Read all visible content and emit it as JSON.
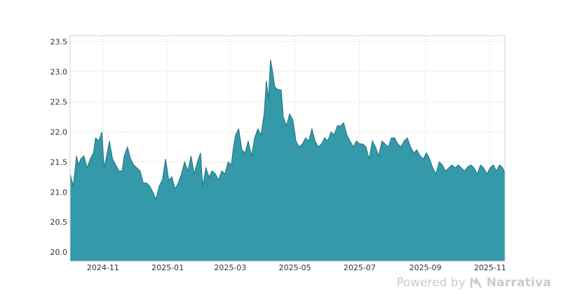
{
  "chart_data": {
    "type": "area",
    "title": "",
    "xlabel": "",
    "ylabel": "",
    "ylim": [
      19.85,
      23.6
    ],
    "xlim": [
      "2024-10-01",
      "2025-11-15"
    ],
    "y_ticks": [
      "20.0",
      "20.5",
      "21.0",
      "21.5",
      "22.0",
      "22.5",
      "23.0",
      "23.5"
    ],
    "x_ticks": [
      "2024-11",
      "2025-01",
      "2025-03",
      "2025-05",
      "2025-07",
      "2025-09",
      "2025-11"
    ],
    "grid": true,
    "colors": {
      "fill": "#3499a9",
      "line": "#1f7480",
      "grid": "#e3e3e3",
      "frame": "#cfcfcf"
    },
    "series": [
      {
        "points": [
          [
            "2024-10-01",
            21.3
          ],
          [
            "2024-10-04",
            21.1
          ],
          [
            "2024-10-07",
            21.6
          ],
          [
            "2024-10-09",
            21.45
          ],
          [
            "2024-10-11",
            21.55
          ],
          [
            "2024-10-14",
            21.6
          ],
          [
            "2024-10-17",
            21.4
          ],
          [
            "2024-10-20",
            21.55
          ],
          [
            "2024-10-23",
            21.65
          ],
          [
            "2024-10-25",
            21.9
          ],
          [
            "2024-10-28",
            21.85
          ],
          [
            "2024-10-31",
            22.0
          ],
          [
            "2024-11-02",
            21.4
          ],
          [
            "2024-11-05",
            21.65
          ],
          [
            "2024-11-07",
            21.85
          ],
          [
            "2024-11-10",
            21.55
          ],
          [
            "2024-11-13",
            21.45
          ],
          [
            "2024-11-16",
            21.35
          ],
          [
            "2024-11-19",
            21.35
          ],
          [
            "2024-11-21",
            21.6
          ],
          [
            "2024-11-24",
            21.75
          ],
          [
            "2024-11-27",
            21.55
          ],
          [
            "2024-11-30",
            21.45
          ],
          [
            "2024-12-03",
            21.4
          ],
          [
            "2024-12-06",
            21.35
          ],
          [
            "2024-12-09",
            21.15
          ],
          [
            "2024-12-12",
            21.15
          ],
          [
            "2024-12-15",
            21.1
          ],
          [
            "2024-12-18",
            21.0
          ],
          [
            "2024-12-21",
            20.88
          ],
          [
            "2024-12-24",
            21.1
          ],
          [
            "2024-12-27",
            21.2
          ],
          [
            "2024-12-30",
            21.55
          ],
          [
            "2025-01-02",
            21.2
          ],
          [
            "2025-01-05",
            21.25
          ],
          [
            "2025-01-08",
            21.05
          ],
          [
            "2025-01-11",
            21.15
          ],
          [
            "2025-01-14",
            21.3
          ],
          [
            "2025-01-17",
            21.5
          ],
          [
            "2025-01-20",
            21.35
          ],
          [
            "2025-01-23",
            21.6
          ],
          [
            "2025-01-26",
            21.3
          ],
          [
            "2025-01-29",
            21.5
          ],
          [
            "2025-02-01",
            21.65
          ],
          [
            "2025-02-03",
            21.1
          ],
          [
            "2025-02-06",
            21.4
          ],
          [
            "2025-02-09",
            21.25
          ],
          [
            "2025-02-12",
            21.35
          ],
          [
            "2025-02-15",
            21.3
          ],
          [
            "2025-02-18",
            21.2
          ],
          [
            "2025-02-21",
            21.35
          ],
          [
            "2025-02-24",
            21.3
          ],
          [
            "2025-02-27",
            21.5
          ],
          [
            "2025-03-02",
            21.45
          ],
          [
            "2025-03-04",
            21.75
          ],
          [
            "2025-03-06",
            21.95
          ],
          [
            "2025-03-09",
            22.05
          ],
          [
            "2025-03-12",
            21.7
          ],
          [
            "2025-03-15",
            21.65
          ],
          [
            "2025-03-18",
            21.85
          ],
          [
            "2025-03-21",
            21.6
          ],
          [
            "2025-03-24",
            21.9
          ],
          [
            "2025-03-27",
            22.05
          ],
          [
            "2025-03-30",
            21.95
          ],
          [
            "2025-04-02",
            22.3
          ],
          [
            "2025-04-04",
            22.85
          ],
          [
            "2025-04-06",
            22.55
          ],
          [
            "2025-04-08",
            23.2
          ],
          [
            "2025-04-10",
            23.0
          ],
          [
            "2025-04-12",
            22.75
          ],
          [
            "2025-04-15",
            22.7
          ],
          [
            "2025-04-18",
            22.7
          ],
          [
            "2025-04-20",
            22.25
          ],
          [
            "2025-04-23",
            22.1
          ],
          [
            "2025-04-26",
            22.3
          ],
          [
            "2025-04-29",
            22.2
          ],
          [
            "2025-05-02",
            21.85
          ],
          [
            "2025-05-05",
            21.75
          ],
          [
            "2025-05-08",
            21.8
          ],
          [
            "2025-05-11",
            21.9
          ],
          [
            "2025-05-14",
            21.85
          ],
          [
            "2025-05-17",
            22.05
          ],
          [
            "2025-05-20",
            21.85
          ],
          [
            "2025-05-23",
            21.75
          ],
          [
            "2025-05-26",
            21.8
          ],
          [
            "2025-05-29",
            21.9
          ],
          [
            "2025-06-01",
            21.85
          ],
          [
            "2025-06-04",
            22.0
          ],
          [
            "2025-06-07",
            21.95
          ],
          [
            "2025-06-10",
            22.1
          ],
          [
            "2025-06-13",
            22.1
          ],
          [
            "2025-06-16",
            22.15
          ],
          [
            "2025-06-19",
            21.95
          ],
          [
            "2025-06-22",
            21.85
          ],
          [
            "2025-06-25",
            21.75
          ],
          [
            "2025-06-28",
            21.85
          ],
          [
            "2025-07-01",
            21.8
          ],
          [
            "2025-07-04",
            21.8
          ],
          [
            "2025-07-07",
            21.75
          ],
          [
            "2025-07-10",
            21.55
          ],
          [
            "2025-07-13",
            21.85
          ],
          [
            "2025-07-16",
            21.75
          ],
          [
            "2025-07-19",
            21.6
          ],
          [
            "2025-07-22",
            21.85
          ],
          [
            "2025-07-25",
            21.8
          ],
          [
            "2025-07-28",
            21.75
          ],
          [
            "2025-07-31",
            21.9
          ],
          [
            "2025-08-03",
            21.9
          ],
          [
            "2025-08-06",
            21.8
          ],
          [
            "2025-08-09",
            21.75
          ],
          [
            "2025-08-12",
            21.85
          ],
          [
            "2025-08-15",
            21.9
          ],
          [
            "2025-08-18",
            21.75
          ],
          [
            "2025-08-21",
            21.65
          ],
          [
            "2025-08-24",
            21.7
          ],
          [
            "2025-08-27",
            21.6
          ],
          [
            "2025-08-30",
            21.55
          ],
          [
            "2025-09-02",
            21.65
          ],
          [
            "2025-09-05",
            21.55
          ],
          [
            "2025-09-08",
            21.4
          ],
          [
            "2025-09-11",
            21.3
          ],
          [
            "2025-09-14",
            21.5
          ],
          [
            "2025-09-17",
            21.45
          ],
          [
            "2025-09-20",
            21.35
          ],
          [
            "2025-09-23",
            21.4
          ],
          [
            "2025-09-26",
            21.45
          ],
          [
            "2025-09-29",
            21.4
          ],
          [
            "2025-10-02",
            21.45
          ],
          [
            "2025-10-05",
            21.4
          ],
          [
            "2025-10-08",
            21.35
          ],
          [
            "2025-10-11",
            21.42
          ],
          [
            "2025-10-14",
            21.45
          ],
          [
            "2025-10-17",
            21.4
          ],
          [
            "2025-10-20",
            21.3
          ],
          [
            "2025-10-23",
            21.45
          ],
          [
            "2025-10-26",
            21.4
          ],
          [
            "2025-10-29",
            21.3
          ],
          [
            "2025-11-01",
            21.4
          ],
          [
            "2025-11-04",
            21.45
          ],
          [
            "2025-11-07",
            21.35
          ],
          [
            "2025-11-10",
            21.45
          ],
          [
            "2025-11-13",
            21.4
          ],
          [
            "2025-11-15",
            21.3
          ]
        ]
      }
    ]
  },
  "footer": {
    "powered_by": "Powered by",
    "brand": "Narrativa"
  }
}
